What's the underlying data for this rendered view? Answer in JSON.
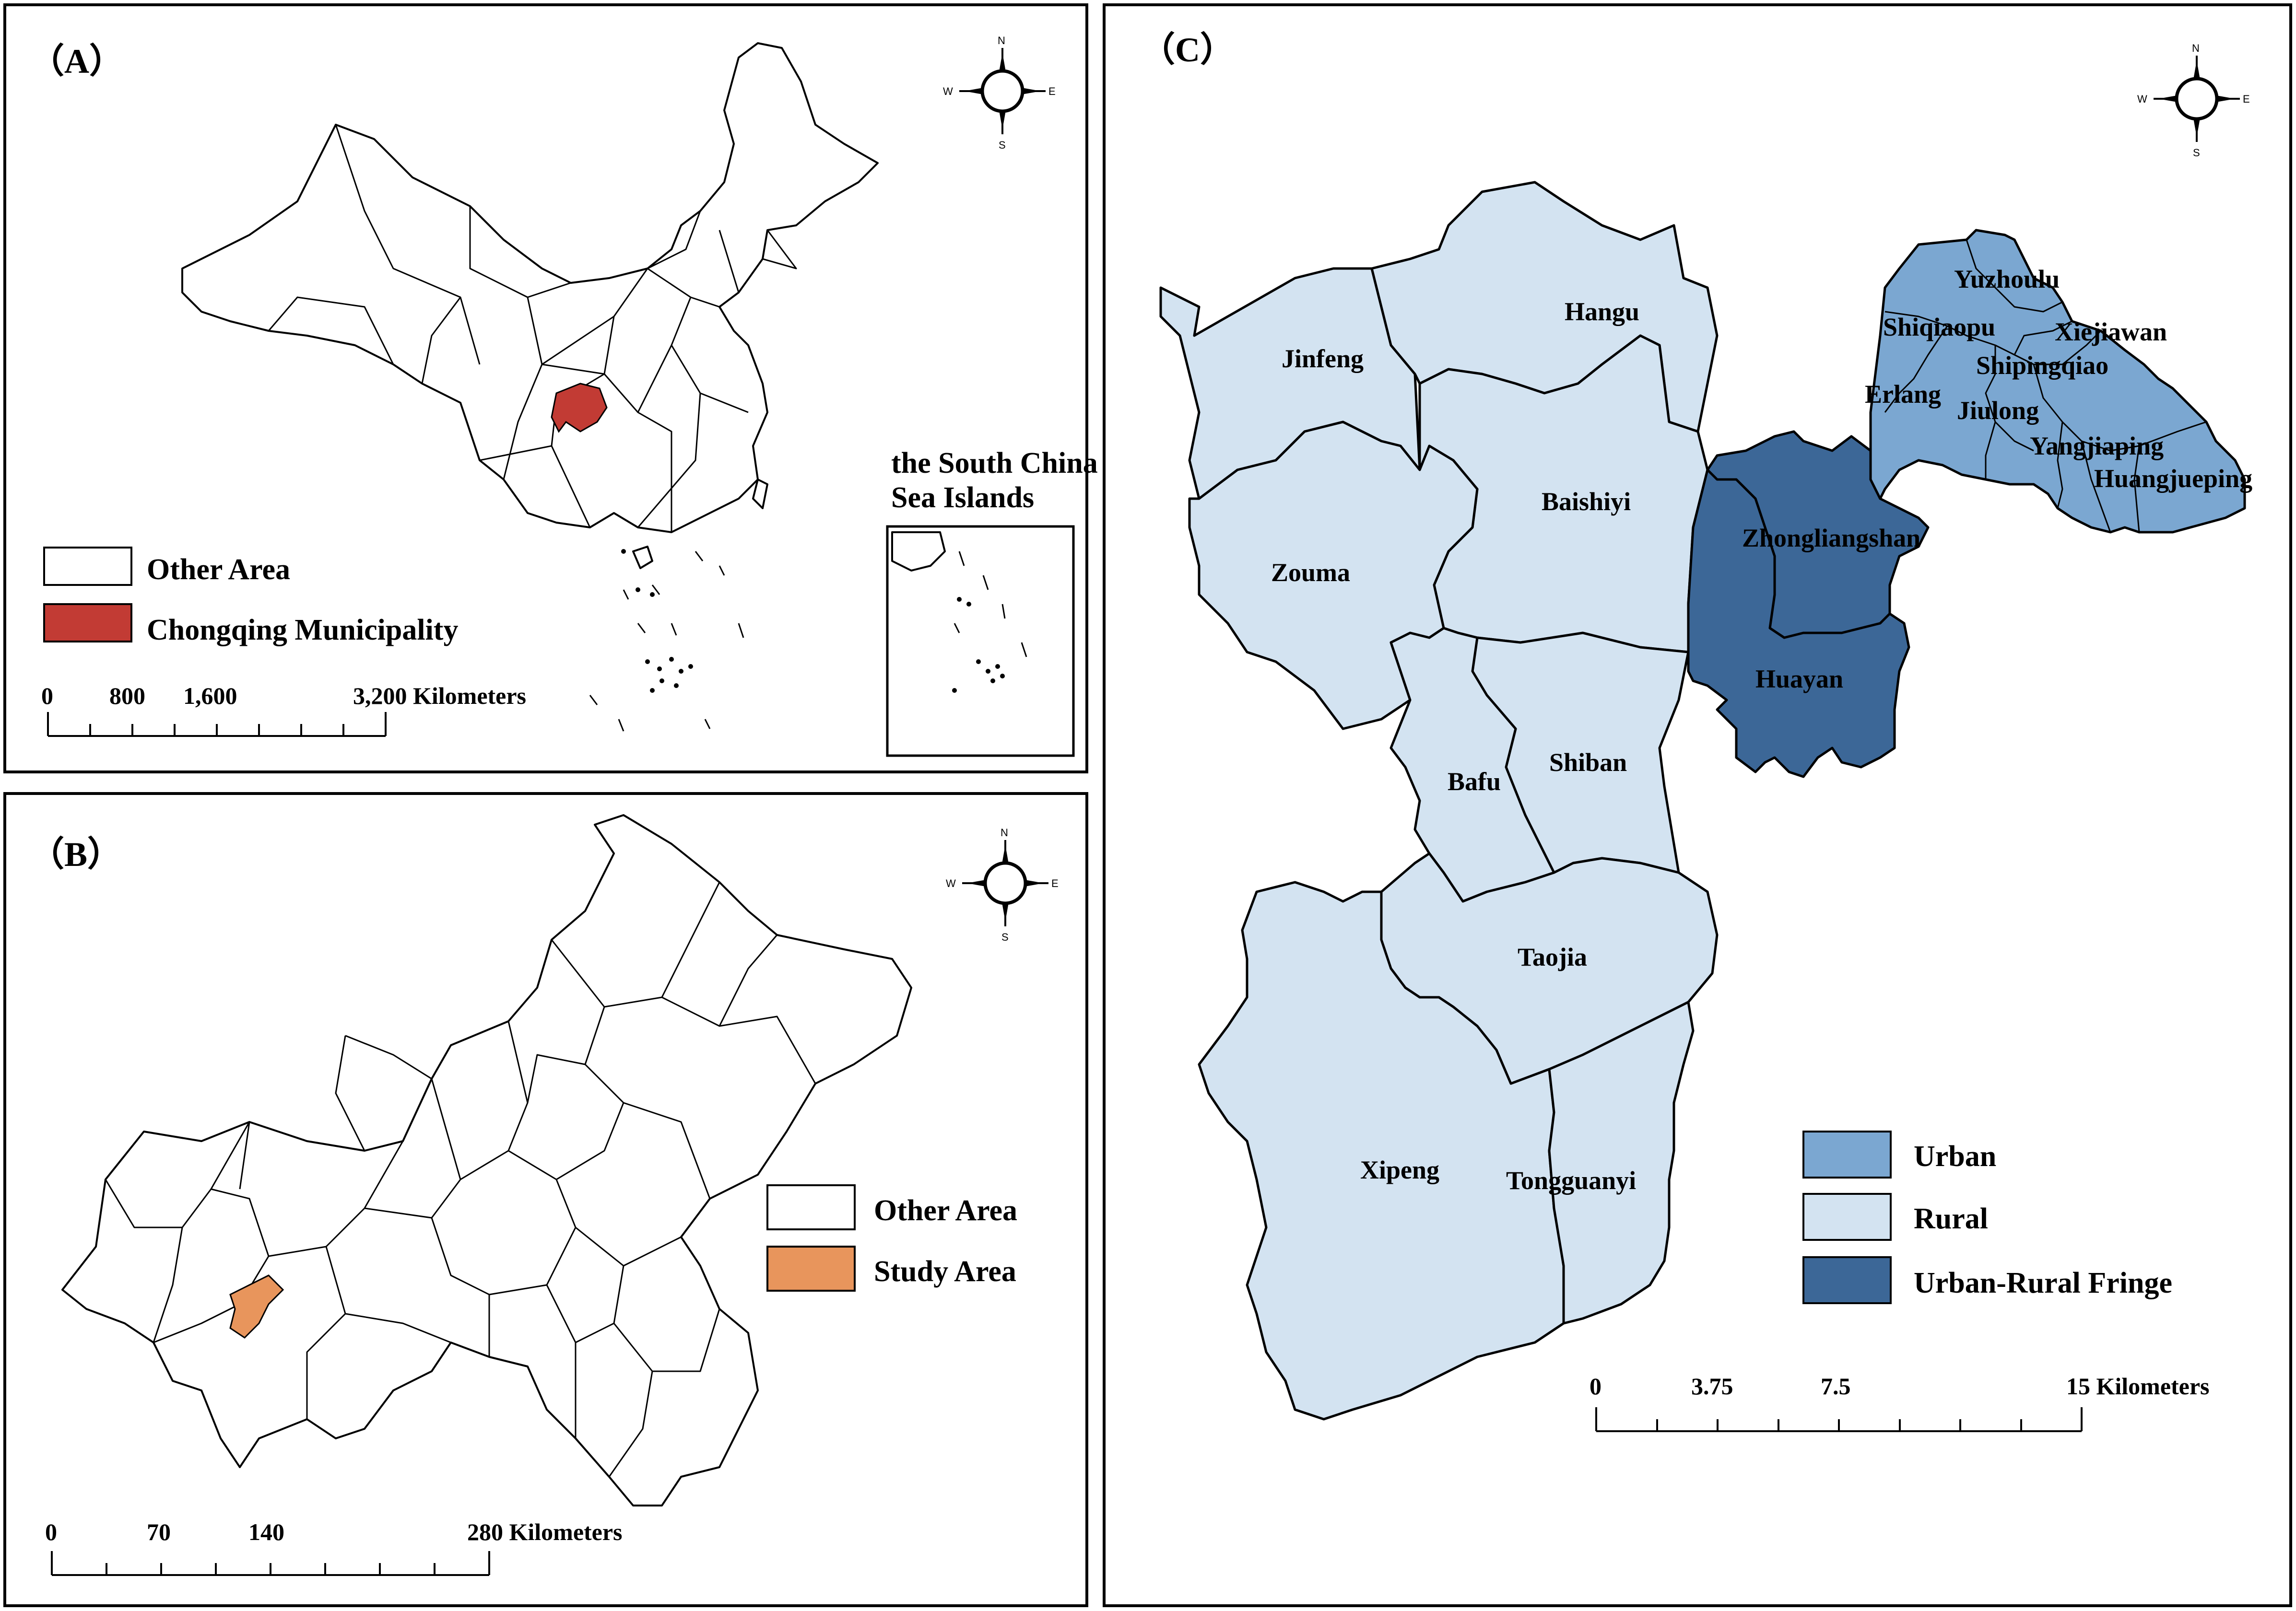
{
  "colors": {
    "chongqing": "#c23b34",
    "study_area": "#e8955c",
    "urban": "#7ba7d1",
    "rural": "#d3e3f1",
    "fringe": "#3c6797",
    "other": "#ffffff"
  },
  "panel_a": {
    "label": "（A）",
    "inset_title_1": "the South China",
    "inset_title_2": "Sea Islands",
    "legend": [
      {
        "name": "other",
        "label": "Other Area",
        "color": "#ffffff"
      },
      {
        "name": "chongqing",
        "label": "Chongqing Municipality",
        "color": "#c23b34"
      }
    ],
    "scale_ticks": [
      "0",
      "800",
      "1,600",
      "3,200 Kilometers"
    ],
    "compass": {
      "n": "N",
      "s": "S",
      "e": "E",
      "w": "W"
    }
  },
  "panel_b": {
    "label": "（B）",
    "legend": [
      {
        "name": "other",
        "label": "Other Area",
        "color": "#ffffff"
      },
      {
        "name": "study",
        "label": "Study Area",
        "color": "#e8955c"
      }
    ],
    "scale_ticks": [
      "0",
      "70",
      "140",
      "280 Kilometers"
    ],
    "compass": {
      "n": "N",
      "s": "S",
      "e": "E",
      "w": "W"
    }
  },
  "panel_c": {
    "label": "（C）",
    "towns": {
      "hangu": "Hangu",
      "jinfeng": "Jinfeng",
      "baishiyi": "Baishiyi",
      "zouma": "Zouma",
      "bafu": "Bafu",
      "shiban": "Shiban",
      "taojia": "Taojia",
      "xipeng": "Xipeng",
      "tongguanyi": "Tongguanyi",
      "zhongliangshan": "Zhongliangshan",
      "huayan": "Huayan",
      "yuzhoulu": "Yuzhoulu",
      "shiqiaopu": "Shiqiaopu",
      "xiejiawan": "Xiejiawan",
      "shipingqiao": "Shipingqiao",
      "erlang": "Erlang",
      "jiulong": "Jiulong",
      "yangjiaping": "Yangjiaping",
      "huangjueping": "Huangjueping"
    },
    "legend": [
      {
        "name": "urban",
        "label": "Urban",
        "color": "#7ba7d1"
      },
      {
        "name": "rural",
        "label": "Rural",
        "color": "#d3e3f1"
      },
      {
        "name": "fringe",
        "label": "Urban-Rural Fringe",
        "color": "#3c6797"
      }
    ],
    "scale_ticks": [
      "0",
      "3.75",
      "7.5",
      "15 Kilometers"
    ],
    "compass": {
      "n": "N",
      "s": "S",
      "e": "E",
      "w": "W"
    }
  }
}
